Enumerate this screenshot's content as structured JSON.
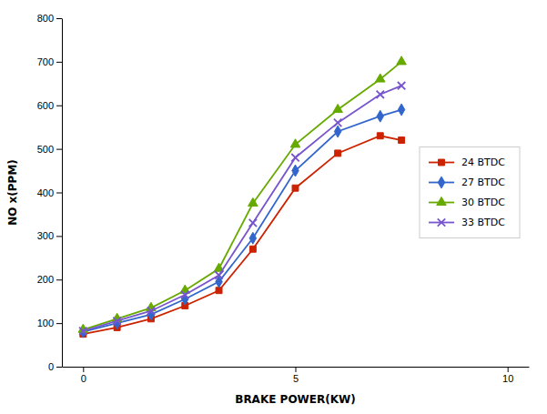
{
  "chart_data": {
    "type": "line",
    "xlabel": "BRAKE POWER(KW)",
    "ylabel": "NO x(PPM)",
    "x": [
      0.0,
      0.8,
      1.6,
      2.4,
      3.2,
      4.0,
      5.0,
      6.0,
      7.0,
      7.5
    ],
    "series": [
      {
        "name": "24 BTDC",
        "color": "#cc2200",
        "marker": "square",
        "values": [
          75,
          90,
          110,
          140,
          175,
          270,
          410,
          490,
          530,
          520
        ]
      },
      {
        "name": "27 BTDC",
        "color": "#3366cc",
        "marker": "diamond",
        "values": [
          80,
          100,
          120,
          155,
          195,
          295,
          450,
          540,
          575,
          590
        ]
      },
      {
        "name": "30 BTDC",
        "color": "#66aa00",
        "marker": "triangle",
        "values": [
          85,
          110,
          135,
          175,
          225,
          375,
          510,
          590,
          660,
          700
        ]
      },
      {
        "name": "33 BTDC",
        "color": "#7755cc",
        "marker": "x",
        "values": [
          82,
          105,
          128,
          165,
          210,
          330,
          480,
          560,
          625,
          645
        ]
      }
    ],
    "xlim": [
      -0.5,
      10.5
    ],
    "ylim": [
      0,
      800
    ],
    "xticks": [
      0,
      5,
      10
    ],
    "yticks": [
      0,
      100,
      200,
      300,
      400,
      500,
      600,
      700,
      800
    ],
    "grid": false,
    "legend": "right"
  }
}
